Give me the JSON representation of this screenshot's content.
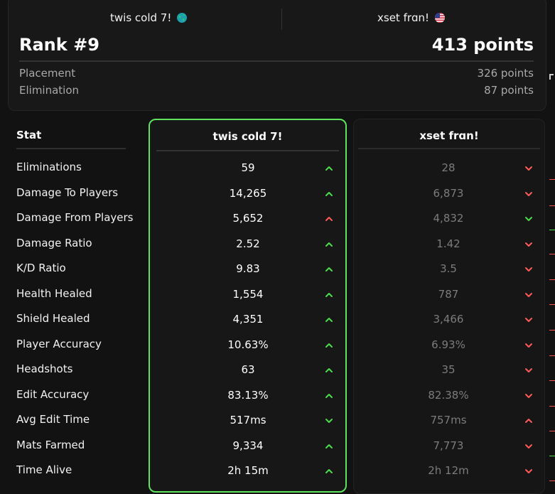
{
  "players": [
    {
      "name": "twis cold 7!",
      "flag": "globe-icon"
    },
    {
      "name": "xset frɑn!",
      "flag": "us-flag-icon"
    }
  ],
  "summary": {
    "rank": "Rank #9",
    "points": "413 points",
    "placement_label": "Placement",
    "placement_value": "326 points",
    "elimination_label": "Elimination",
    "elimination_value": "87 points"
  },
  "table": {
    "stat_header": "Stat",
    "rows": [
      {
        "stat": "Eliminations",
        "p1": "59",
        "p1_trend": "up",
        "p2": "28",
        "p2_trend": "down"
      },
      {
        "stat": "Damage To Players",
        "p1": "14,265",
        "p1_trend": "up",
        "p2": "6,873",
        "p2_trend": "down"
      },
      {
        "stat": "Damage From Players",
        "p1": "5,652",
        "p1_trend": "up-red",
        "p2": "4,832",
        "p2_trend": "down-green"
      },
      {
        "stat": "Damage Ratio",
        "p1": "2.52",
        "p1_trend": "up",
        "p2": "1.42",
        "p2_trend": "down"
      },
      {
        "stat": "K/D Ratio",
        "p1": "9.83",
        "p1_trend": "up",
        "p2": "3.5",
        "p2_trend": "down"
      },
      {
        "stat": "Health Healed",
        "p1": "1,554",
        "p1_trend": "up",
        "p2": "787",
        "p2_trend": "down"
      },
      {
        "stat": "Shield Healed",
        "p1": "4,351",
        "p1_trend": "up",
        "p2": "3,466",
        "p2_trend": "down"
      },
      {
        "stat": "Player Accuracy",
        "p1": "10.63%",
        "p1_trend": "up",
        "p2": "6.93%",
        "p2_trend": "down"
      },
      {
        "stat": "Headshots",
        "p1": "63",
        "p1_trend": "up",
        "p2": "35",
        "p2_trend": "down"
      },
      {
        "stat": "Edit Accuracy",
        "p1": "83.13%",
        "p1_trend": "up",
        "p2": "82.38%",
        "p2_trend": "down"
      },
      {
        "stat": "Avg Edit Time",
        "p1": "517ms",
        "p1_trend": "down-green",
        "p2": "757ms",
        "p2_trend": "up-red"
      },
      {
        "stat": "Mats Farmed",
        "p1": "9,334",
        "p1_trend": "up",
        "p2": "7,773",
        "p2_trend": "down"
      },
      {
        "stat": "Time Alive",
        "p1": "2h 15m",
        "p1_trend": "up",
        "p2": "2h 12m",
        "p2_trend": "down"
      }
    ]
  },
  "colors": {
    "better": "#4ade4a",
    "worse": "#ff5a5a",
    "highlight_border": "#5fe35f"
  }
}
